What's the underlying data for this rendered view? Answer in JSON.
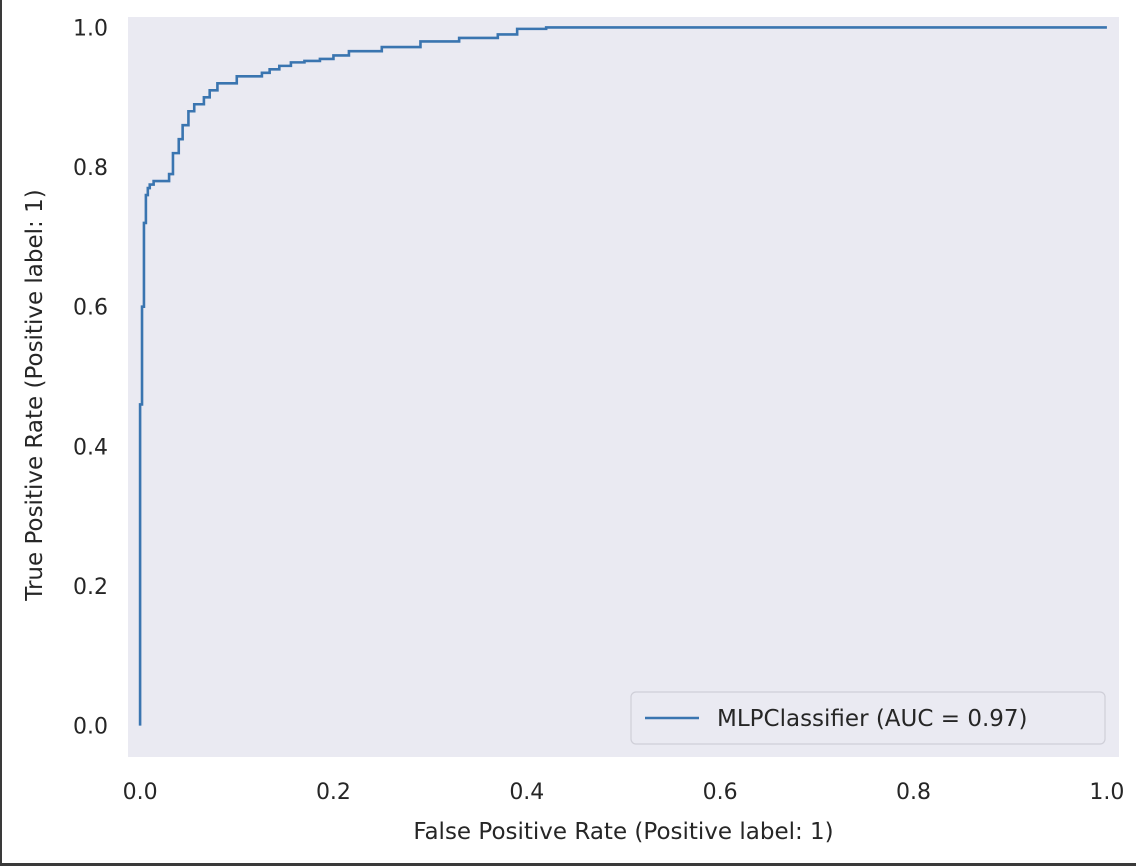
{
  "chart_data": {
    "type": "line",
    "title": "",
    "xlabel": "False Positive Rate (Positive label: 1)",
    "ylabel": "True Positive Rate (Positive label: 1)",
    "xlim": [
      -0.0125,
      1.0125
    ],
    "ylim": [
      -0.045,
      1.015
    ],
    "xticks": [
      0.0,
      0.2,
      0.4,
      0.6,
      0.8,
      1.0
    ],
    "yticks": [
      0.0,
      0.2,
      0.4,
      0.6,
      0.8,
      1.0
    ],
    "xtick_labels": [
      "0.0",
      "0.2",
      "0.4",
      "0.6",
      "0.8",
      "1.0"
    ],
    "ytick_labels": [
      "0.0",
      "0.2",
      "0.4",
      "0.6",
      "0.8",
      "1.0"
    ],
    "grid": false,
    "background_color": "#eaeaf2",
    "legend_position": "lower-right",
    "series": [
      {
        "name": "MLPClassifier (AUC = 0.97)",
        "color": "#3a75b0",
        "x": [
          0.0,
          0.0,
          0.002,
          0.002,
          0.004,
          0.004,
          0.006,
          0.006,
          0.008,
          0.008,
          0.01,
          0.01,
          0.014,
          0.014,
          0.02,
          0.02,
          0.03,
          0.03,
          0.034,
          0.034,
          0.04,
          0.04,
          0.044,
          0.044,
          0.05,
          0.05,
          0.056,
          0.056,
          0.066,
          0.066,
          0.072,
          0.072,
          0.08,
          0.08,
          0.1,
          0.1,
          0.126,
          0.126,
          0.134,
          0.134,
          0.144,
          0.144,
          0.156,
          0.156,
          0.17,
          0.17,
          0.186,
          0.186,
          0.2,
          0.2,
          0.216,
          0.216,
          0.25,
          0.25,
          0.29,
          0.29,
          0.33,
          0.33,
          0.37,
          0.37,
          0.39,
          0.39,
          0.42,
          0.42,
          1.0
        ],
        "y": [
          0.0,
          0.46,
          0.46,
          0.6,
          0.6,
          0.72,
          0.72,
          0.76,
          0.76,
          0.77,
          0.77,
          0.775,
          0.775,
          0.78,
          0.78,
          0.78,
          0.78,
          0.79,
          0.79,
          0.82,
          0.82,
          0.84,
          0.84,
          0.86,
          0.86,
          0.88,
          0.88,
          0.89,
          0.89,
          0.9,
          0.9,
          0.91,
          0.91,
          0.92,
          0.92,
          0.93,
          0.93,
          0.935,
          0.935,
          0.94,
          0.94,
          0.945,
          0.945,
          0.95,
          0.95,
          0.952,
          0.952,
          0.955,
          0.955,
          0.96,
          0.96,
          0.966,
          0.966,
          0.972,
          0.972,
          0.98,
          0.98,
          0.985,
          0.985,
          0.99,
          0.99,
          0.998,
          0.998,
          1.0,
          1.0
        ]
      }
    ]
  }
}
